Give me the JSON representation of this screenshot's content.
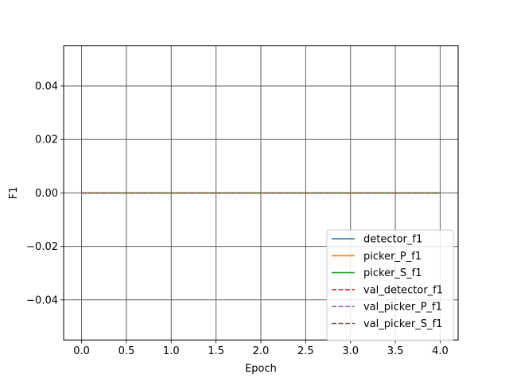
{
  "chart_data": {
    "type": "line",
    "title": "",
    "xlabel": "Epoch",
    "ylabel": "F1",
    "xlim": [
      -0.2,
      4.2
    ],
    "ylim": [
      -0.055,
      0.055
    ],
    "xticks": [
      0.0,
      0.5,
      1.0,
      1.5,
      2.0,
      2.5,
      3.0,
      3.5,
      4.0
    ],
    "xtick_labels": [
      "0.0",
      "0.5",
      "1.0",
      "1.5",
      "2.0",
      "2.5",
      "3.0",
      "3.5",
      "4.0"
    ],
    "yticks": [
      -0.04,
      -0.02,
      0.0,
      0.02,
      0.04
    ],
    "ytick_labels": [
      "−0.04",
      "−0.02",
      "0.00",
      "0.02",
      "0.04"
    ],
    "grid": true,
    "legend_position": "lower-right",
    "x": [
      0,
      1,
      2,
      3,
      4
    ],
    "series": [
      {
        "name": "detector_f1",
        "values": [
          0,
          0,
          0,
          0,
          0
        ],
        "color": "#1f77b4",
        "style": "solid"
      },
      {
        "name": "picker_P_f1",
        "values": [
          0,
          0,
          0,
          0,
          0
        ],
        "color": "#ff7f0e",
        "style": "solid"
      },
      {
        "name": "picker_S_f1",
        "values": [
          0,
          0,
          0,
          0,
          0
        ],
        "color": "#2ca02c",
        "style": "solid"
      },
      {
        "name": "val_detector_f1",
        "values": [
          0,
          0,
          0,
          0,
          0
        ],
        "color": "#d62728",
        "style": "dashed"
      },
      {
        "name": "val_picker_P_f1",
        "values": [
          0,
          0,
          0,
          0,
          0
        ],
        "color": "#9467bd",
        "style": "dashed"
      },
      {
        "name": "val_picker_S_f1",
        "values": [
          0,
          0,
          0,
          0,
          0
        ],
        "color": "#8c564b",
        "style": "dashed"
      }
    ]
  }
}
